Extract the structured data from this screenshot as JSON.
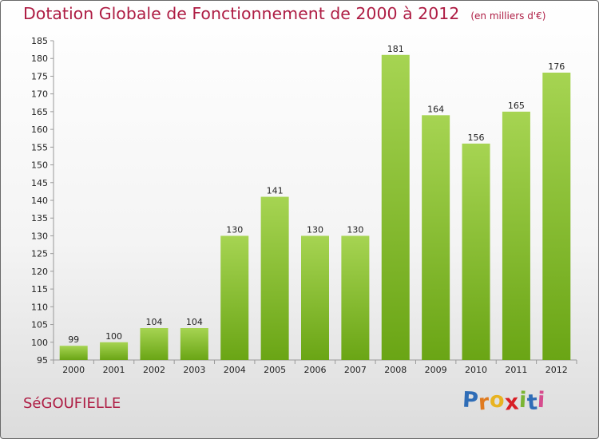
{
  "title": "Dotation Globale de Fonctionnement de 2000 à 2012",
  "unit_note": "(en milliers d'€)",
  "commune": "SéGOUFIELLE",
  "logo": {
    "letters": [
      "P",
      "r",
      "o",
      "x",
      "i",
      "t",
      "i"
    ],
    "colors": [
      "#2f6db7",
      "#e07a1f",
      "#e8b321",
      "#d81f26",
      "#7bb534",
      "#2f6db7",
      "#d64c8e"
    ]
  },
  "chart_data": {
    "type": "bar",
    "categories": [
      "2000",
      "2001",
      "2002",
      "2003",
      "2004",
      "2005",
      "2006",
      "2007",
      "2008",
      "2009",
      "2010",
      "2011",
      "2012"
    ],
    "values": [
      99,
      100,
      104,
      104,
      130,
      141,
      130,
      130,
      181,
      164,
      156,
      165,
      176
    ],
    "value_labels": [
      "99",
      "100",
      "104",
      "104",
      "130",
      "141",
      "130",
      "130",
      "181",
      "164",
      "156",
      "165",
      "176"
    ],
    "ylim": [
      95,
      185
    ],
    "yticks": [
      95,
      100,
      105,
      110,
      115,
      120,
      125,
      130,
      135,
      140,
      145,
      150,
      155,
      160,
      165,
      170,
      175,
      180,
      185
    ],
    "grid": false,
    "bar_color_top": "#a6d452",
    "bar_color_bottom": "#6aa515"
  }
}
